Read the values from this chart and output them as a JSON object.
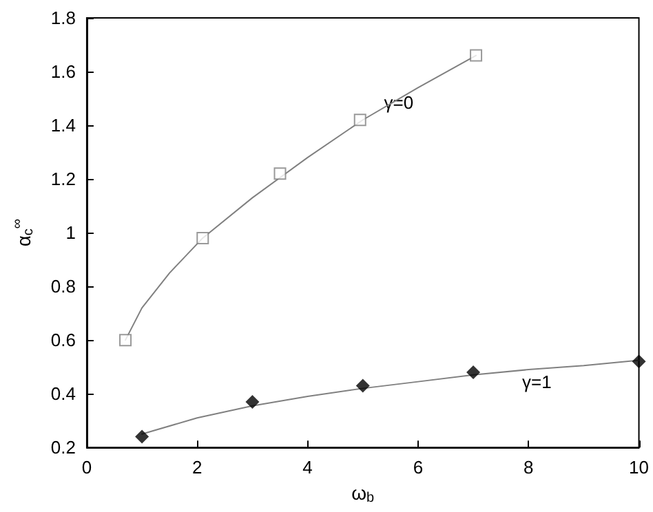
{
  "chart_data": {
    "type": "scatter",
    "xlabel": "ω$_{b}$",
    "ylabel": "α$_{c}$$^{∞}$",
    "xlim": [
      0,
      10
    ],
    "xticks": [
      0,
      2,
      4,
      6,
      8,
      10
    ],
    "ylim": [
      0.2,
      1.8
    ],
    "yticks": [
      0.2,
      0.4,
      0.6,
      0.8,
      1,
      1.2,
      1.4,
      1.6,
      1.8
    ],
    "grid": false,
    "series": [
      {
        "name": "γ=0",
        "marker": "square",
        "color": "#808080",
        "x": [
          0.7,
          2.1,
          3.5,
          4.95,
          7.05
        ],
        "values": [
          0.6,
          0.98,
          1.22,
          1.42,
          1.66
        ]
      },
      {
        "name": "γ=1",
        "marker": "diamond",
        "color": "#000000",
        "x": [
          1,
          3,
          5,
          7,
          10
        ],
        "values": [
          0.24,
          0.37,
          0.43,
          0.48,
          0.52
        ]
      },
      {
        "type": "line",
        "marker": "none",
        "color": "#808080",
        "x": [
          0.7,
          1,
          1.5,
          2.1,
          3,
          4,
          5,
          6,
          7.05
        ],
        "values": [
          0.6,
          0.72,
          0.85,
          0.98,
          1.13,
          1.28,
          1.42,
          1.54,
          1.66
        ]
      },
      {
        "type": "line",
        "marker": "none",
        "color": "#808080",
        "x": [
          1,
          2,
          3,
          4,
          5,
          6,
          7,
          8,
          9,
          10
        ],
        "values": [
          0.25,
          0.31,
          0.355,
          0.39,
          0.42,
          0.445,
          0.47,
          0.49,
          0.505,
          0.525
        ]
      }
    ]
  }
}
